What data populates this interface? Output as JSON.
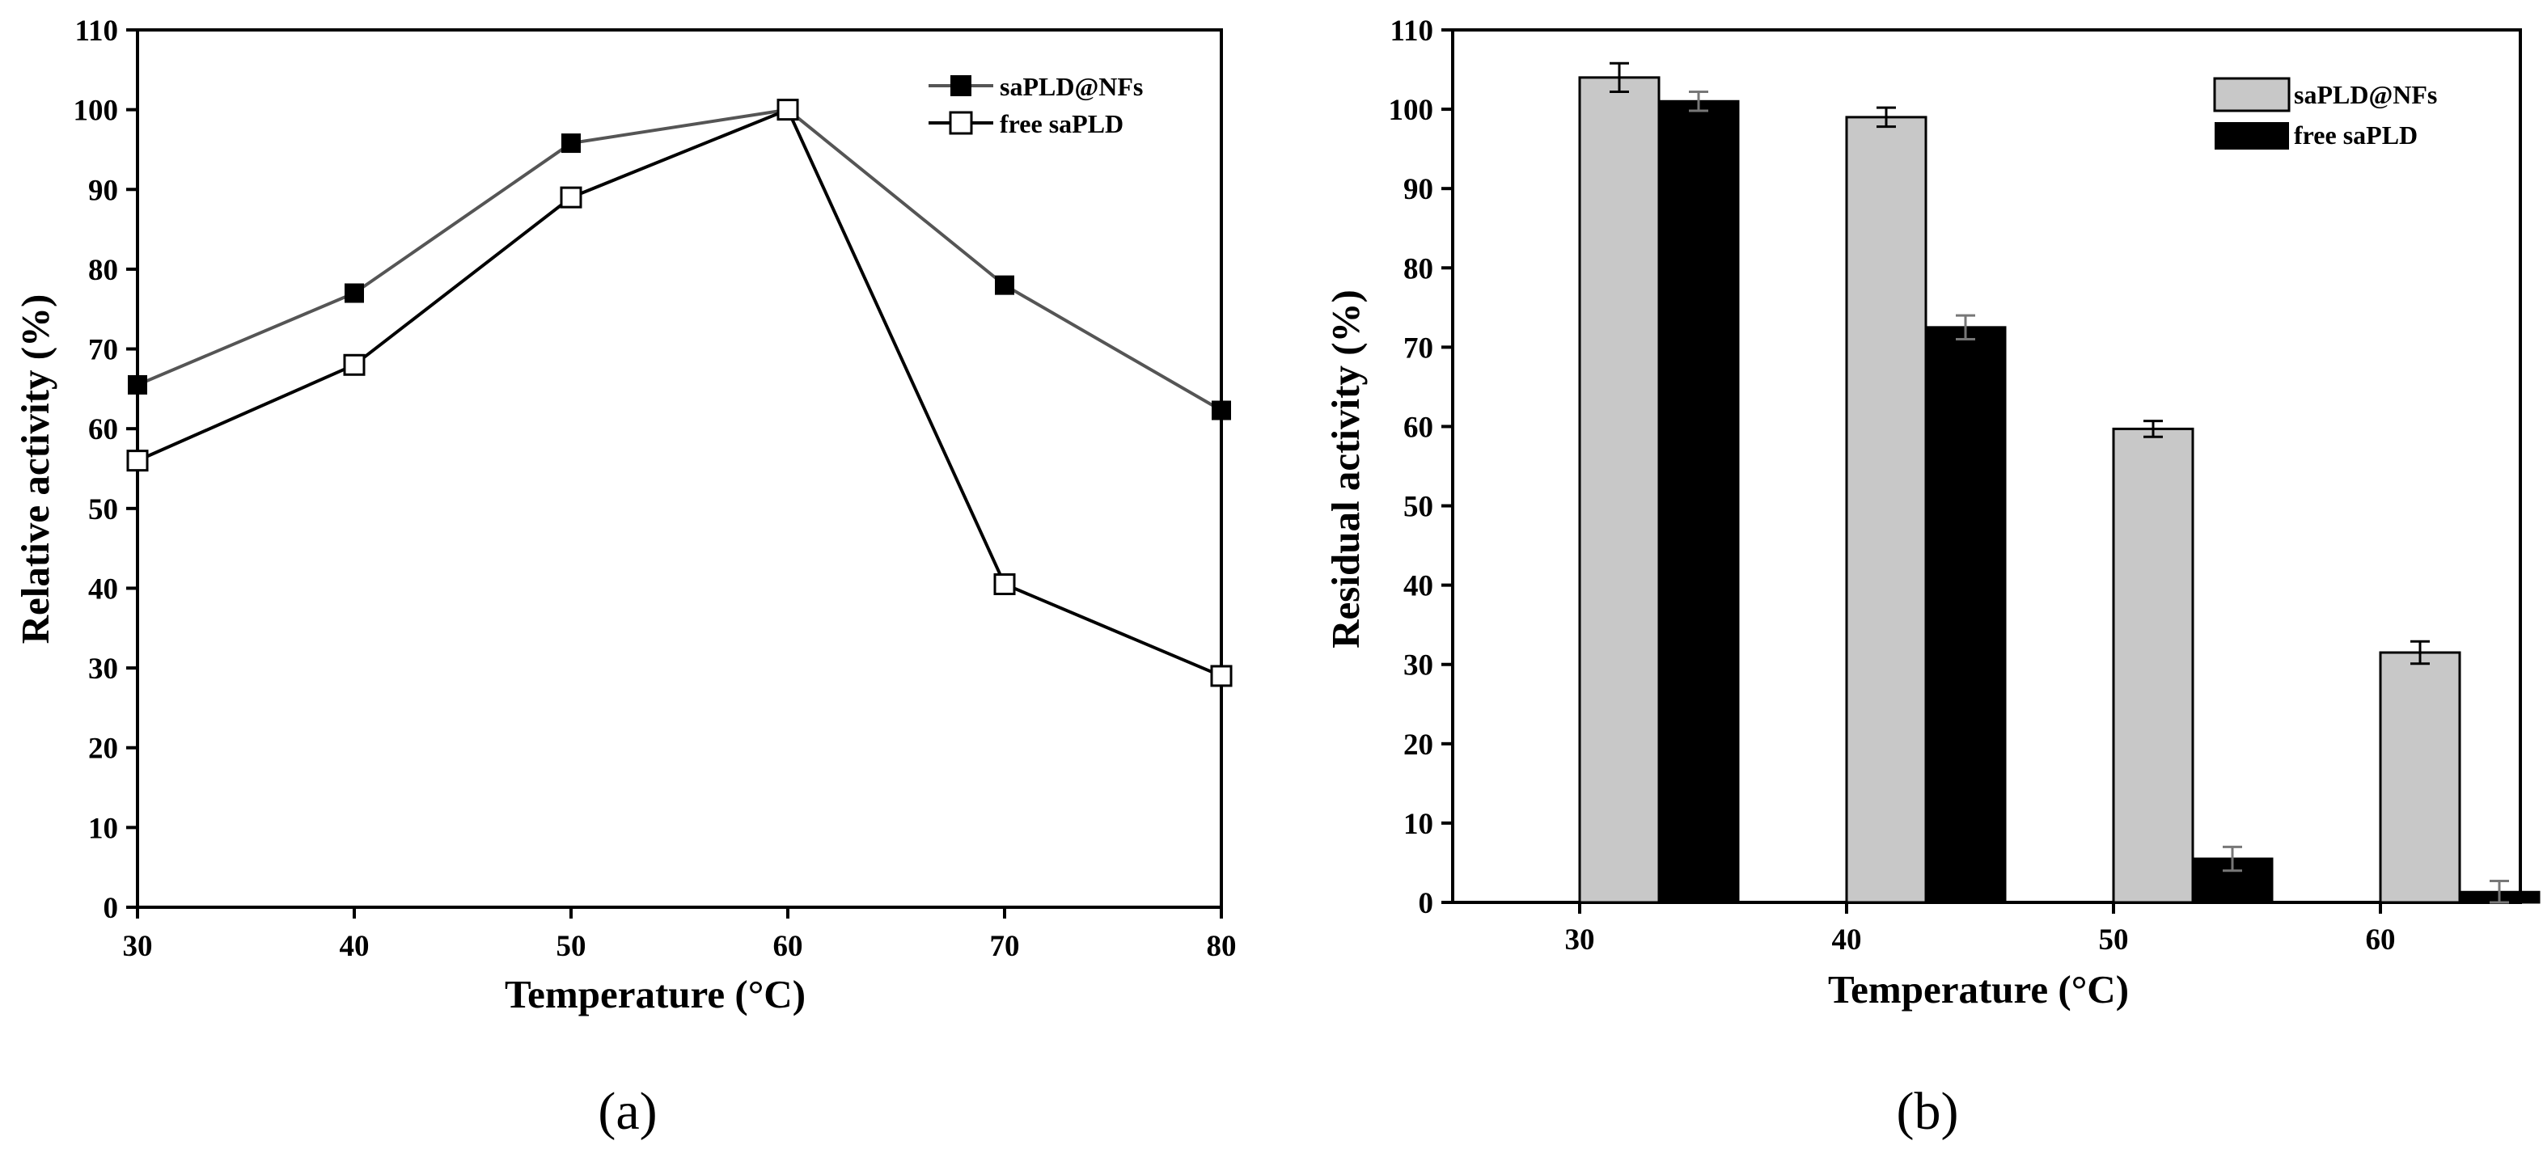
{
  "chart_data": [
    {
      "type": "line",
      "panel_label": "(a)",
      "xlabel": "Temperature (°C)",
      "ylabel": "Relative activity (%)",
      "xlim": [
        30,
        80
      ],
      "ylim": [
        0,
        110
      ],
      "x_ticks": [
        "30",
        "40",
        "50",
        "60",
        "70",
        "80"
      ],
      "y_ticks": [
        "0",
        "10",
        "20",
        "30",
        "40",
        "50",
        "60",
        "70",
        "80",
        "90",
        "100",
        "110"
      ],
      "legend_position": "top-right",
      "x": [
        30,
        40,
        50,
        60,
        70,
        80
      ],
      "series": [
        {
          "name": "saPLD@NFs",
          "marker": "filled-square",
          "color": "#000000",
          "line_color": "#555555",
          "values": [
            65.5,
            77,
            95.8,
            100,
            78,
            62.3
          ]
        },
        {
          "name": "free saPLD",
          "marker": "open-square",
          "color": "#000000",
          "line_color": "#000000",
          "values": [
            56,
            68,
            89,
            100,
            40.5,
            29
          ]
        }
      ]
    },
    {
      "type": "bar",
      "panel_label": "(b)",
      "xlabel": "Temperature (°C)",
      "ylabel": "Residual activity (%)",
      "ylim": [
        0,
        110
      ],
      "y_ticks": [
        "0",
        "10",
        "20",
        "30",
        "40",
        "50",
        "60",
        "70",
        "80",
        "90",
        "100",
        "110"
      ],
      "categories": [
        "30",
        "40",
        "50",
        "60"
      ],
      "legend_position": "top-right",
      "series": [
        {
          "name": "saPLD@NFs",
          "color": "#c8c8c8",
          "values": [
            104,
            99,
            59.7,
            31.5
          ],
          "errors": [
            1.8,
            1.2,
            1.0,
            1.4
          ]
        },
        {
          "name": "free saPLD",
          "color": "#000000",
          "values": [
            101,
            72.5,
            5.5,
            1.3
          ],
          "errors": [
            1.2,
            1.5,
            1.5,
            1.4
          ]
        }
      ]
    }
  ]
}
